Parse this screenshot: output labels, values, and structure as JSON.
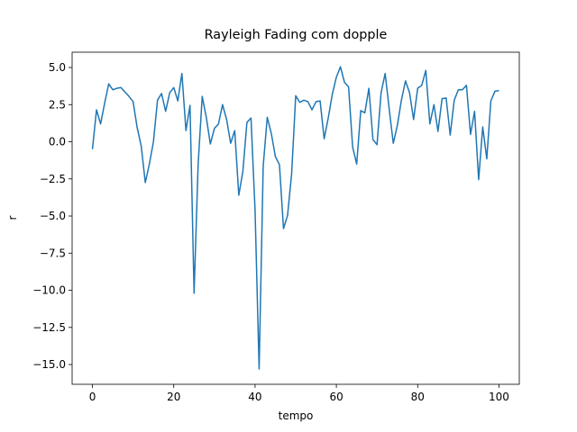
{
  "chart_data": {
    "type": "line",
    "title": "Rayleigh Fading com dopple",
    "x_label": "tempo",
    "y_label": "r",
    "x": [
      0,
      1,
      2,
      3,
      4,
      5,
      6,
      7,
      8,
      9,
      10,
      11,
      12,
      13,
      14,
      15,
      16,
      17,
      18,
      19,
      20,
      21,
      22,
      23,
      24,
      25,
      26,
      27,
      28,
      29,
      30,
      31,
      32,
      33,
      34,
      35,
      36,
      37,
      38,
      39,
      40,
      41,
      42,
      43,
      44,
      45,
      46,
      47,
      48,
      49,
      50,
      51,
      52,
      53,
      54,
      55,
      56,
      57,
      58,
      59,
      60,
      61,
      62,
      63,
      64,
      65,
      66,
      67,
      68,
      69,
      70,
      71,
      72,
      73,
      74,
      75,
      76,
      77,
      78,
      79,
      80,
      81,
      82,
      83,
      84,
      85,
      86,
      87,
      88,
      89,
      90,
      91,
      92,
      93,
      94,
      95,
      96,
      97,
      98,
      99,
      100
    ],
    "series": [
      {
        "color": "#1f77b4",
        "values": [
          -0.5,
          2.15,
          1.2,
          2.6,
          3.9,
          3.5,
          3.6,
          3.65,
          3.35,
          3.05,
          2.7,
          0.95,
          -0.3,
          -2.75,
          -1.5,
          0,
          2.8,
          3.25,
          2.05,
          3.3,
          3.65,
          2.75,
          4.6,
          0.75,
          2.45,
          -10.2,
          -1.5,
          3.05,
          1.65,
          -0.15,
          0.9,
          1.2,
          2.5,
          1.5,
          -0.1,
          0.75,
          -3.6,
          -2,
          1.3,
          1.6,
          -4.6,
          -15.3,
          -1.65,
          1.65,
          0.55,
          -1.0,
          -1.55,
          -5.85,
          -4.95,
          -2.15,
          3.1,
          2.65,
          2.8,
          2.7,
          2.15,
          2.7,
          2.75,
          0.2,
          1.6,
          3.2,
          4.35,
          5.05,
          4.0,
          3.7,
          -0.35,
          -1.5,
          2.1,
          1.95,
          3.6,
          0.15,
          -0.2,
          3.3,
          4.6,
          2.2,
          -0.1,
          1.1,
          2.8,
          4.1,
          3.3,
          1.5,
          3.6,
          3.8,
          4.8,
          1.2,
          2.5,
          0.7,
          2.9,
          2.95,
          0.45,
          2.8,
          3.5,
          3.5,
          3.8,
          0.5,
          2.05,
          -2.55,
          1.0,
          -1.15,
          2.75,
          3.4,
          3.45
        ]
      }
    ],
    "xlim": [
      -5,
      105
    ],
    "ylim": [
      -16.33,
      6.03
    ],
    "xticks": [
      0,
      20,
      40,
      60,
      80,
      100
    ],
    "yticks": [
      {
        "value": -15,
        "label": "−15.0"
      },
      {
        "value": -12.5,
        "label": "−12.5"
      },
      {
        "value": -10,
        "label": "−10.0"
      },
      {
        "value": -7.5,
        "label": "−7.5"
      },
      {
        "value": -5,
        "label": "−5.0"
      },
      {
        "value": -2.5,
        "label": "−2.5"
      },
      {
        "value": 0,
        "label": "0.0"
      },
      {
        "value": 2.5,
        "label": "2.5"
      },
      {
        "value": 5,
        "label": "5.0"
      }
    ]
  }
}
